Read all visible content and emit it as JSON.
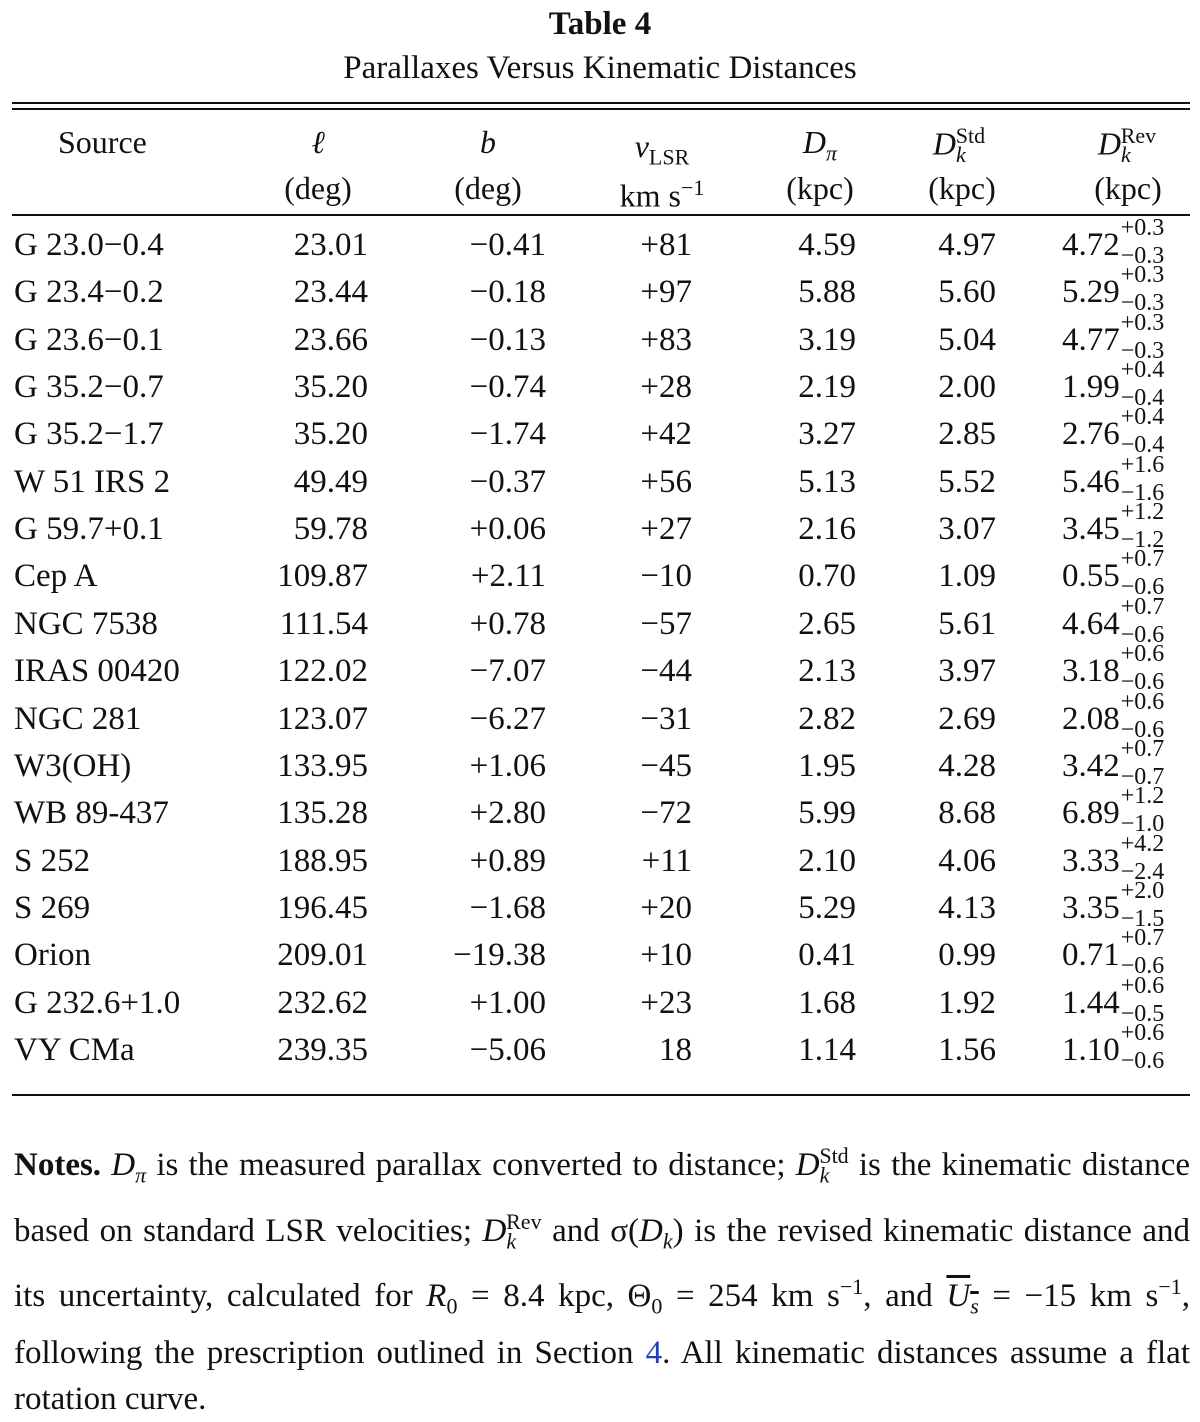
{
  "caption": {
    "label": "Table 4",
    "title": "Parallaxes Versus Kinematic Distances"
  },
  "header": {
    "source": "Source",
    "l_unit": "(deg)",
    "b_unit": "(deg)",
    "v_unit": "km s",
    "v_unit_exp": "−1",
    "dpi_unit": "(kpc)",
    "dstd_unit": "(kpc)",
    "drev_unit": "(kpc)"
  },
  "rows": [
    {
      "source": "G 23.0−0.4",
      "l": "23.01",
      "b": "−0.41",
      "v": "+81",
      "dpi": "4.59",
      "dstd": "4.97",
      "drev": "4.72",
      "up": "+0.3",
      "dn": "−0.3"
    },
    {
      "source": "G 23.4−0.2",
      "l": "23.44",
      "b": "−0.18",
      "v": "+97",
      "dpi": "5.88",
      "dstd": "5.60",
      "drev": "5.29",
      "up": "+0.3",
      "dn": "−0.3"
    },
    {
      "source": "G 23.6−0.1",
      "l": "23.66",
      "b": "−0.13",
      "v": "+83",
      "dpi": "3.19",
      "dstd": "5.04",
      "drev": "4.77",
      "up": "+0.3",
      "dn": "−0.3"
    },
    {
      "source": "G 35.2−0.7",
      "l": "35.20",
      "b": "−0.74",
      "v": "+28",
      "dpi": "2.19",
      "dstd": "2.00",
      "drev": "1.99",
      "up": "+0.4",
      "dn": "−0.4"
    },
    {
      "source": "G 35.2−1.7",
      "l": "35.20",
      "b": "−1.74",
      "v": "+42",
      "dpi": "3.27",
      "dstd": "2.85",
      "drev": "2.76",
      "up": "+0.4",
      "dn": "−0.4"
    },
    {
      "source": "W 51 IRS 2",
      "l": "49.49",
      "b": "−0.37",
      "v": "+56",
      "dpi": "5.13",
      "dstd": "5.52",
      "drev": "5.46",
      "up": "+1.6",
      "dn": "−1.6"
    },
    {
      "source": "G 59.7+0.1",
      "l": "59.78",
      "b": "+0.06",
      "v": "+27",
      "dpi": "2.16",
      "dstd": "3.07",
      "drev": "3.45",
      "up": "+1.2",
      "dn": "−1.2"
    },
    {
      "source": "Cep A",
      "l": "109.87",
      "b": "+2.11",
      "v": "−10",
      "dpi": "0.70",
      "dstd": "1.09",
      "drev": "0.55",
      "up": "+0.7",
      "dn": "−0.6"
    },
    {
      "source": "NGC 7538",
      "l": "111.54",
      "b": "+0.78",
      "v": "−57",
      "dpi": "2.65",
      "dstd": "5.61",
      "drev": "4.64",
      "up": "+0.7",
      "dn": "−0.6"
    },
    {
      "source": "IRAS 00420",
      "l": "122.02",
      "b": "−7.07",
      "v": "−44",
      "dpi": "2.13",
      "dstd": "3.97",
      "drev": "3.18",
      "up": "+0.6",
      "dn": "−0.6"
    },
    {
      "source": "NGC 281",
      "l": "123.07",
      "b": "−6.27",
      "v": "−31",
      "dpi": "2.82",
      "dstd": "2.69",
      "drev": "2.08",
      "up": "+0.6",
      "dn": "−0.6"
    },
    {
      "source": "W3(OH)",
      "l": "133.95",
      "b": "+1.06",
      "v": "−45",
      "dpi": "1.95",
      "dstd": "4.28",
      "drev": "3.42",
      "up": "+0.7",
      "dn": "−0.7"
    },
    {
      "source": "WB 89-437",
      "l": "135.28",
      "b": "+2.80",
      "v": "−72",
      "dpi": "5.99",
      "dstd": "8.68",
      "drev": "6.89",
      "up": "+1.2",
      "dn": "−1.0"
    },
    {
      "source": "S 252",
      "l": "188.95",
      "b": "+0.89",
      "v": "+11",
      "dpi": "2.10",
      "dstd": "4.06",
      "drev": "3.33",
      "up": "+4.2",
      "dn": "−2.4"
    },
    {
      "source": "S 269",
      "l": "196.45",
      "b": "−1.68",
      "v": "+20",
      "dpi": "5.29",
      "dstd": "4.13",
      "drev": "3.35",
      "up": "+2.0",
      "dn": "−1.5"
    },
    {
      "source": "Orion",
      "l": "209.01",
      "b": "−19.38",
      "v": "+10",
      "dpi": "0.41",
      "dstd": "0.99",
      "drev": "0.71",
      "up": "+0.7",
      "dn": "−0.6"
    },
    {
      "source": "G 232.6+1.0",
      "l": "232.62",
      "b": "+1.00",
      "v": "+23",
      "dpi": "1.68",
      "dstd": "1.92",
      "drev": "1.44",
      "up": "+0.6",
      "dn": "−0.5"
    },
    {
      "source": "VY CMa",
      "l": "239.35",
      "b": "−5.06",
      "v": "18",
      "dpi": "1.14",
      "dstd": "1.56",
      "drev": "1.10",
      "up": "+0.6",
      "dn": "−0.6"
    }
  ],
  "notes": {
    "label": "Notes.",
    "t1": " is the measured parallax converted to distance; ",
    "t2": " is the kinematic distance based on standard LSR velocities; ",
    "t3": " and σ(",
    "t4": ") is the revised kinematic distance and its uncertainty, calculated for ",
    "t5": " = 8.4 kpc, Θ",
    "t6": " = 254 km s",
    "t7": ", and ",
    "t8": " = −15 km s",
    "t9": ", following the prescription outlined in Section ",
    "section_link": "4",
    "t10": ". All kinematic distances assume a flat rotation curve."
  }
}
